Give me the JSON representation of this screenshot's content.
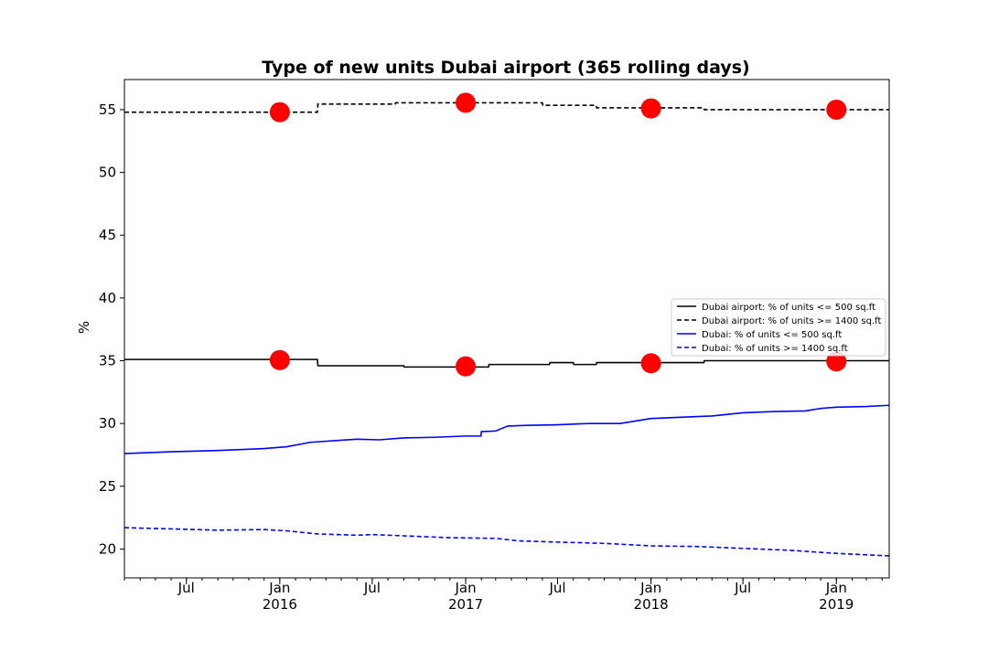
{
  "chart_data": {
    "type": "line",
    "title": "Type of new units Dubai airport (365 rolling days)",
    "xlabel": "",
    "ylabel": "%",
    "x_range": [
      "2015-03-01",
      "2019-04-15"
    ],
    "ylim": [
      17.7,
      57.4
    ],
    "y_ticks": [
      20,
      25,
      30,
      35,
      40,
      45,
      50,
      55
    ],
    "x_ticks": [
      {
        "date": "2015-07-01",
        "label": "Jul",
        "sublabel": ""
      },
      {
        "date": "2016-01-01",
        "label": "Jan",
        "sublabel": "2016"
      },
      {
        "date": "2016-07-01",
        "label": "Jul",
        "sublabel": ""
      },
      {
        "date": "2017-01-01",
        "label": "Jan",
        "sublabel": "2017"
      },
      {
        "date": "2017-07-01",
        "label": "Jul",
        "sublabel": ""
      },
      {
        "date": "2018-01-01",
        "label": "Jan",
        "sublabel": "2018"
      },
      {
        "date": "2018-07-01",
        "label": "Jul",
        "sublabel": ""
      },
      {
        "date": "2019-01-01",
        "label": "Jan",
        "sublabel": "2019"
      }
    ],
    "grid": false,
    "legend_position": "center-right",
    "series": [
      {
        "name": "Dubai airport: % of units <= 500 sq.ft",
        "color": "#000000",
        "style": "solid",
        "step": true,
        "points": [
          [
            "2015-03-01",
            35.1
          ],
          [
            "2016-03-15",
            35.1
          ],
          [
            "2016-03-16",
            34.6
          ],
          [
            "2016-09-01",
            34.6
          ],
          [
            "2016-09-02",
            34.5
          ],
          [
            "2017-02-15",
            34.5
          ],
          [
            "2017-02-16",
            34.7
          ],
          [
            "2017-06-15",
            34.7
          ],
          [
            "2017-06-16",
            34.85
          ],
          [
            "2017-08-01",
            34.85
          ],
          [
            "2017-08-02",
            34.7
          ],
          [
            "2017-09-15",
            34.7
          ],
          [
            "2017-09-16",
            34.85
          ],
          [
            "2018-04-15",
            34.85
          ],
          [
            "2018-04-16",
            35.0
          ],
          [
            "2019-04-15",
            35.0
          ]
        ]
      },
      {
        "name": "Dubai airport: % of units >= 1400 sq.ft",
        "color": "#000000",
        "style": "dashed",
        "step": true,
        "points": [
          [
            "2015-03-01",
            54.8
          ],
          [
            "2016-03-15",
            54.8
          ],
          [
            "2016-03-16",
            55.45
          ],
          [
            "2016-08-15",
            55.45
          ],
          [
            "2016-08-16",
            55.55
          ],
          [
            "2017-06-01",
            55.55
          ],
          [
            "2017-06-02",
            55.35
          ],
          [
            "2017-09-15",
            55.35
          ],
          [
            "2017-09-16",
            55.15
          ],
          [
            "2018-04-15",
            55.15
          ],
          [
            "2018-04-16",
            55.0
          ],
          [
            "2019-04-15",
            55.0
          ]
        ]
      },
      {
        "name": "Dubai: % of units <= 500 sq.ft",
        "color": "#0000ff",
        "style": "solid",
        "step": false,
        "points": [
          [
            "2015-03-01",
            27.6
          ],
          [
            "2015-06-01",
            27.75
          ],
          [
            "2015-09-01",
            27.85
          ],
          [
            "2015-12-01",
            28.0
          ],
          [
            "2016-01-15",
            28.15
          ],
          [
            "2016-03-01",
            28.5
          ],
          [
            "2016-06-01",
            28.75
          ],
          [
            "2016-07-15",
            28.7
          ],
          [
            "2016-09-01",
            28.85
          ],
          [
            "2016-11-01",
            28.9
          ],
          [
            "2017-01-01",
            29.0
          ],
          [
            "2017-01-31",
            29.0
          ],
          [
            "2017-02-01",
            29.35
          ],
          [
            "2017-03-01",
            29.4
          ],
          [
            "2017-03-25",
            29.8
          ],
          [
            "2017-05-01",
            29.85
          ],
          [
            "2017-07-01",
            29.9
          ],
          [
            "2017-09-01",
            30.0
          ],
          [
            "2017-11-01",
            30.0
          ],
          [
            "2018-01-01",
            30.4
          ],
          [
            "2018-03-01",
            30.5
          ],
          [
            "2018-05-01",
            30.6
          ],
          [
            "2018-07-01",
            30.85
          ],
          [
            "2018-09-01",
            30.95
          ],
          [
            "2018-11-01",
            31.0
          ],
          [
            "2018-12-01",
            31.2
          ],
          [
            "2019-01-01",
            31.3
          ],
          [
            "2019-03-01",
            31.35
          ],
          [
            "2019-04-15",
            31.45
          ]
        ]
      },
      {
        "name": "Dubai: % of units >= 1400 sq.ft",
        "color": "#0000ff",
        "style": "dashed",
        "step": false,
        "points": [
          [
            "2015-03-01",
            21.7
          ],
          [
            "2015-06-01",
            21.6
          ],
          [
            "2015-09-01",
            21.5
          ],
          [
            "2015-12-01",
            21.55
          ],
          [
            "2016-01-15",
            21.45
          ],
          [
            "2016-03-15",
            21.2
          ],
          [
            "2016-06-01",
            21.1
          ],
          [
            "2016-07-01",
            21.15
          ],
          [
            "2016-09-01",
            21.05
          ],
          [
            "2016-12-01",
            20.9
          ],
          [
            "2017-03-01",
            20.85
          ],
          [
            "2017-04-15",
            20.65
          ],
          [
            "2017-07-01",
            20.55
          ],
          [
            "2017-10-01",
            20.45
          ],
          [
            "2018-01-01",
            20.25
          ],
          [
            "2018-04-01",
            20.2
          ],
          [
            "2018-07-01",
            20.05
          ],
          [
            "2018-10-01",
            19.9
          ],
          [
            "2019-01-01",
            19.65
          ],
          [
            "2019-04-15",
            19.45
          ]
        ]
      }
    ],
    "markers": {
      "color": "#ff0000",
      "points": [
        [
          "2016-01-01",
          35.05
        ],
        [
          "2017-01-01",
          34.55
        ],
        [
          "2018-01-01",
          34.8
        ],
        [
          "2019-01-01",
          34.95
        ],
        [
          "2016-01-01",
          54.8
        ],
        [
          "2017-01-01",
          55.55
        ],
        [
          "2018-01-01",
          55.1
        ],
        [
          "2019-01-01",
          55.0
        ]
      ]
    }
  }
}
